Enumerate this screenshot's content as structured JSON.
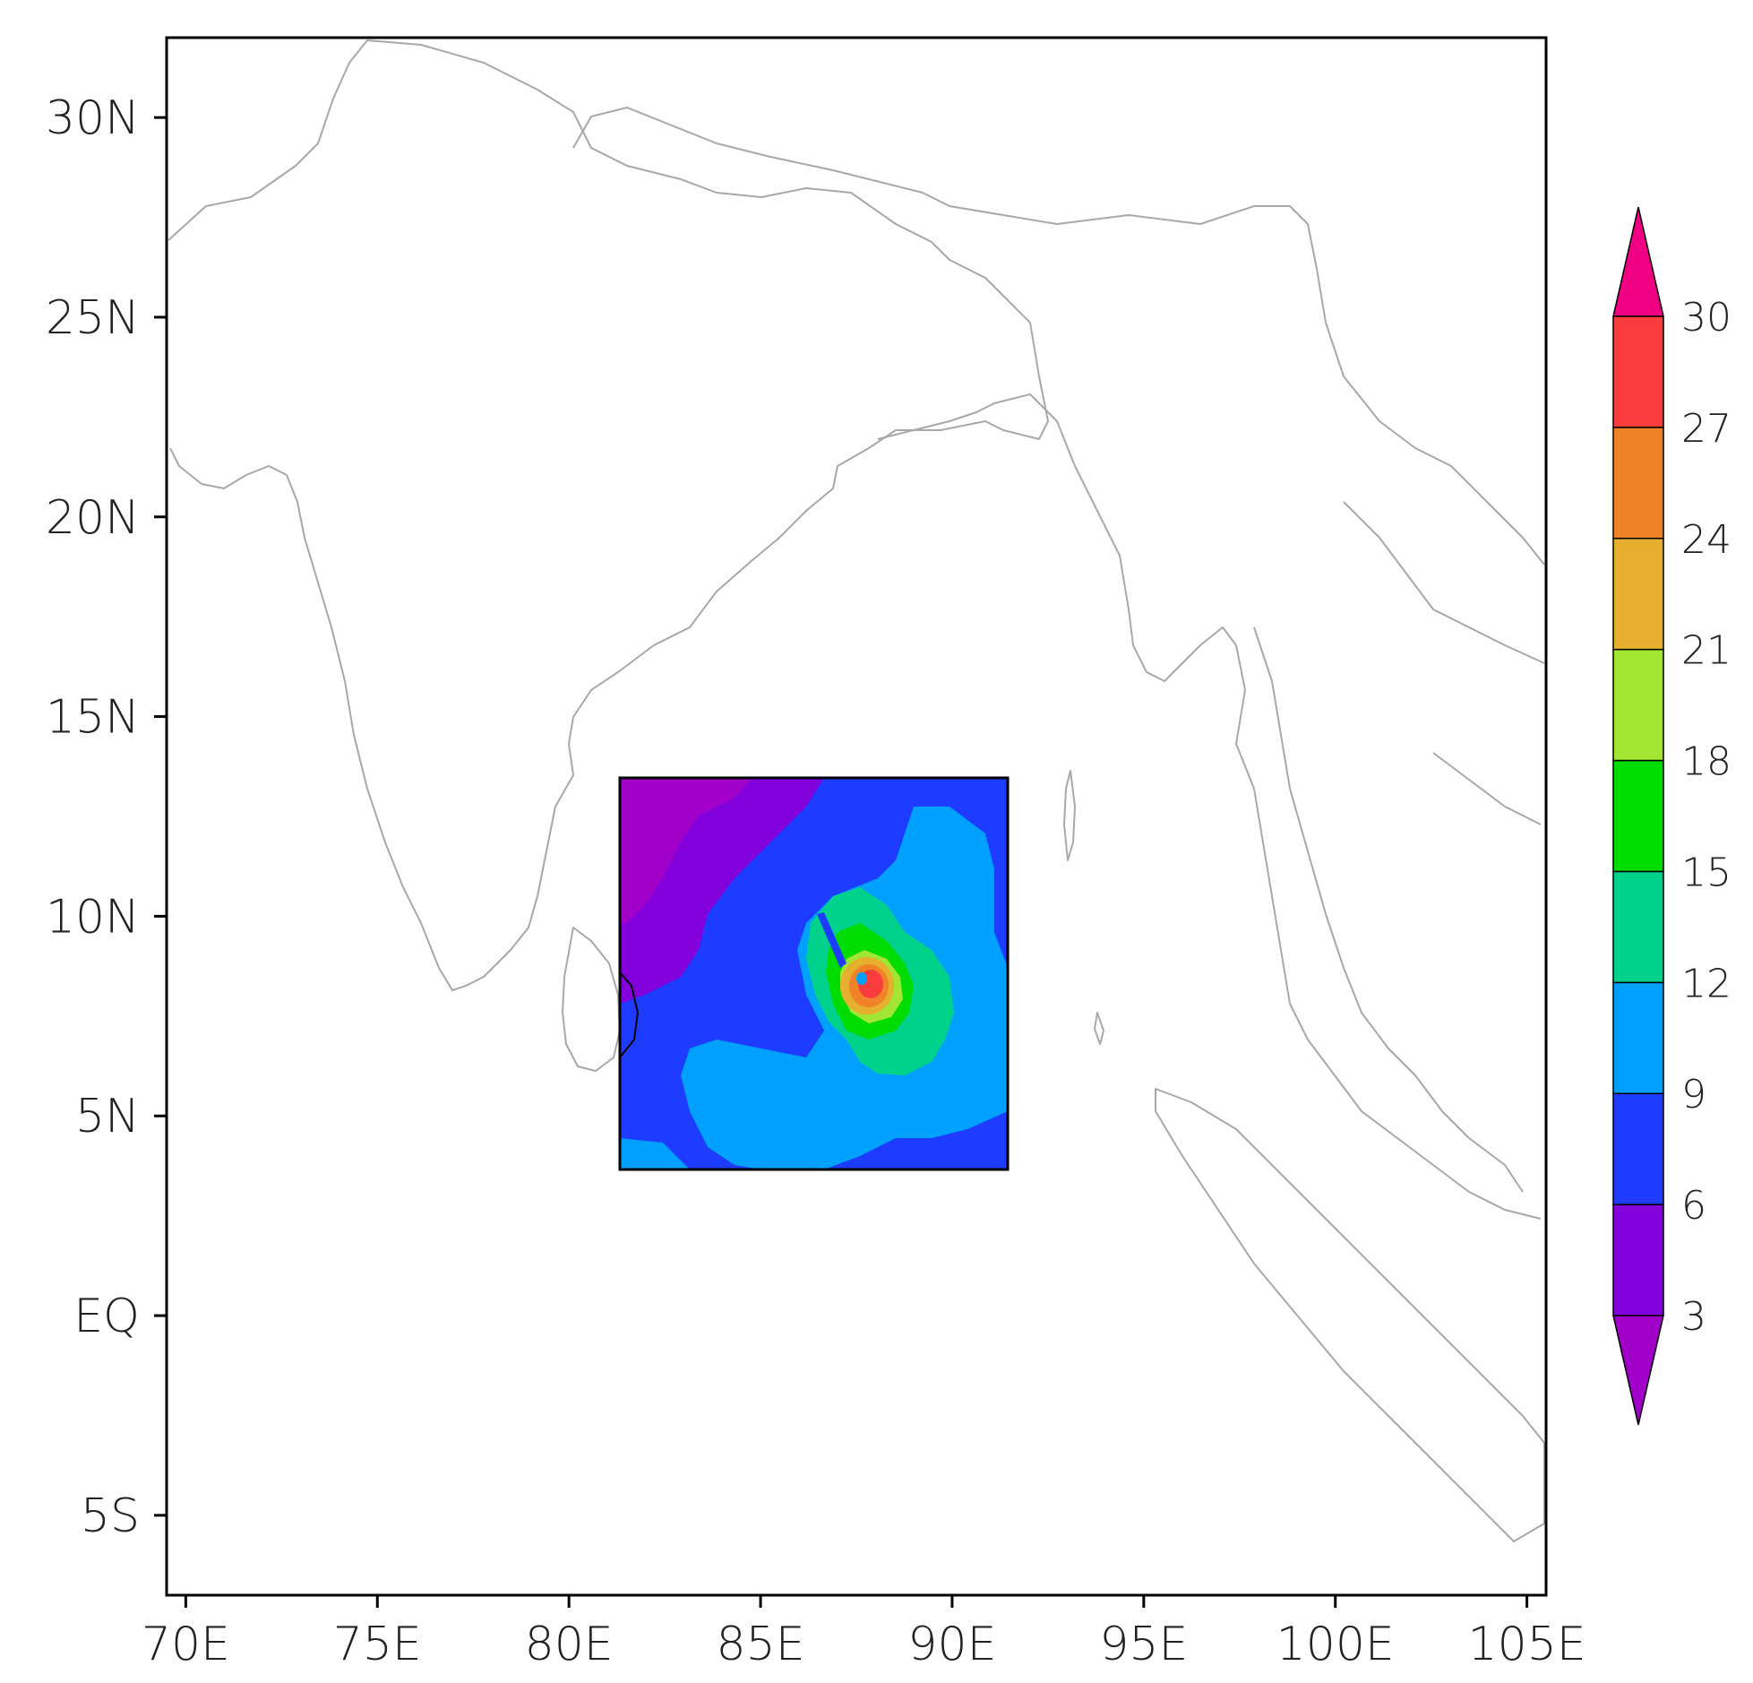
{
  "map": {
    "lon_range": [
      69.5,
      105.5
    ],
    "lat_range": [
      -7,
      32
    ],
    "x_ticks": [
      {
        "lon": 70,
        "label": "70E"
      },
      {
        "lon": 75,
        "label": "75E"
      },
      {
        "lon": 80,
        "label": "80E"
      },
      {
        "lon": 85,
        "label": "85E"
      },
      {
        "lon": 90,
        "label": "90E"
      },
      {
        "lon": 95,
        "label": "95E"
      },
      {
        "lon": 100,
        "label": "100E"
      },
      {
        "lon": 105,
        "label": "105E"
      }
    ],
    "y_ticks": [
      {
        "lat": 30,
        "label": "30N"
      },
      {
        "lat": 25,
        "label": "25N"
      },
      {
        "lat": 20,
        "label": "20N"
      },
      {
        "lat": 15,
        "label": "15N"
      },
      {
        "lat": 10,
        "label": "10N"
      },
      {
        "lat": 5,
        "label": "5N"
      },
      {
        "lat": 0,
        "label": "EQ"
      },
      {
        "lat": -5,
        "label": "5S"
      }
    ],
    "coastline_color": "#a8a8a8",
    "inset_region": {
      "lon": [
        81.2,
        91.4
      ],
      "lat": [
        3.6,
        13.5
      ]
    },
    "storm_center": {
      "lon": 87.4,
      "lat": 8.3
    }
  },
  "colorbar": {
    "levels": [
      "3",
      "6",
      "9",
      "12",
      "15",
      "18",
      "21",
      "24",
      "27",
      "30"
    ],
    "colors": [
      "#a000c8",
      "#8200dc",
      "#1e3cff",
      "#00a0ff",
      "#00d28c",
      "#00dc00",
      "#a0e632",
      "#e6af2d",
      "#f08228",
      "#fa3c3c",
      "#f00082"
    ],
    "extend": "both"
  }
}
